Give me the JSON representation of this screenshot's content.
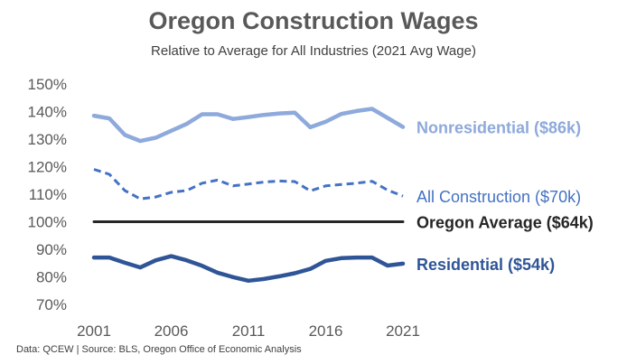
{
  "chart_data": {
    "type": "line",
    "title": "Oregon Construction Wages",
    "subtitle": "Relative to Average for All Industries (2021 Avg Wage)",
    "footer": "Data: QCEW  |  Source: BLS, Oregon Office of Economic Analysis",
    "x": [
      2001,
      2002,
      2003,
      2004,
      2005,
      2006,
      2007,
      2008,
      2009,
      2010,
      2011,
      2012,
      2013,
      2014,
      2015,
      2016,
      2017,
      2018,
      2019,
      2020,
      2021
    ],
    "x_ticks": [
      2001,
      2006,
      2011,
      2016,
      2021
    ],
    "y_ticks": [
      "70%",
      "80%",
      "90%",
      "100%",
      "110%",
      "120%",
      "130%",
      "140%",
      "150%"
    ],
    "ylim": [
      70,
      150
    ],
    "grid": false,
    "series": [
      {
        "name": "Nonresidential ($86k)",
        "color": "#8EA9DB",
        "style": "solid",
        "width": "thick",
        "values": [
          138.5,
          137.5,
          131.5,
          129.3,
          130.5,
          133,
          135.5,
          139,
          139,
          137.3,
          138,
          138.8,
          139.3,
          139.6,
          134.3,
          136.3,
          139.1,
          140.2,
          141,
          137.7,
          134.4
        ]
      },
      {
        "name": "All Construction ($70k)",
        "color": "#4472C4",
        "style": "dashed",
        "width": "medium",
        "values": [
          119,
          117.2,
          111.3,
          108.3,
          109,
          110.7,
          111.3,
          114,
          115.1,
          113,
          113.7,
          114.4,
          114.8,
          114.6,
          111.2,
          113,
          113.5,
          114,
          114.7,
          111.5,
          109.3
        ]
      },
      {
        "name": "Oregon Average ($64k)",
        "color": "#262626",
        "style": "solid",
        "width": "medium",
        "values": [
          100,
          100,
          100,
          100,
          100,
          100,
          100,
          100,
          100,
          100,
          100,
          100,
          100,
          100,
          100,
          100,
          100,
          100,
          100,
          100,
          100
        ]
      },
      {
        "name": "Residential ($54k)",
        "color": "#2F5597",
        "style": "solid",
        "width": "thick",
        "values": [
          87,
          87,
          85.1,
          83.4,
          86,
          87.5,
          86,
          84,
          81.5,
          79.9,
          78.6,
          79.2,
          80.2,
          81.3,
          82.9,
          85.8,
          86.8,
          87,
          87,
          84.1,
          84.8
        ]
      }
    ]
  }
}
